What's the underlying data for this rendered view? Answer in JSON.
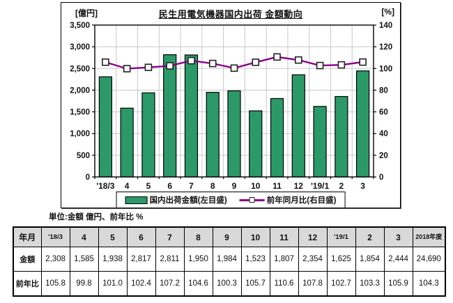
{
  "chart": {
    "title": "民生用電気機器国内出荷 金額動向",
    "left_axis_unit": "[億円]",
    "right_axis_unit": "[%]",
    "legend": {
      "bar_label": "国内出荷金額(左目盛)",
      "line_label": "前年同月比(右目盛)"
    },
    "colors": {
      "bar_fill": "#2B9A68",
      "bar_border": "#000000",
      "line": "#8B008B",
      "marker_fill": "#ffffff",
      "marker_border": "#222222",
      "grid": "#c8c8c8",
      "axis": "#000000"
    }
  },
  "chart_data": {
    "type": "bar",
    "categories": [
      "'18/3",
      "4",
      "5",
      "6",
      "7",
      "8",
      "9",
      "10",
      "11",
      "12",
      "'19/1",
      "2",
      "3"
    ],
    "series": [
      {
        "name": "国内出荷金額(左目盛)",
        "type": "bar",
        "axis": "left",
        "values": [
          2308,
          1585,
          1938,
          2817,
          2811,
          1950,
          1984,
          1523,
          1807,
          2354,
          1625,
          1854,
          2444
        ]
      },
      {
        "name": "前年同月比(右目盛)",
        "type": "line",
        "axis": "right",
        "values": [
          105.8,
          99.8,
          101.0,
          102.4,
          107.2,
          104.6,
          100.3,
          105.7,
          110.6,
          107.8,
          102.7,
          103.3,
          105.9
        ]
      }
    ],
    "title": "民生用電気機器国内出荷 金額動向",
    "left_axis": {
      "label": "[億円]",
      "min": 0,
      "max": 3500,
      "step": 500,
      "ticks": [
        "0",
        "500",
        "1,000",
        "1,500",
        "2,000",
        "2,500",
        "3,000",
        "3,500"
      ]
    },
    "right_axis": {
      "label": "[%]",
      "min": 0,
      "max": 140,
      "step": 20,
      "ticks": [
        "0",
        "20",
        "40",
        "60",
        "80",
        "100",
        "120",
        "140"
      ]
    },
    "grid": true,
    "legend_position": "bottom"
  },
  "table": {
    "unit_note": "単位:金額 億円、前年比 %",
    "header": [
      "年月",
      "'18/3",
      "4",
      "5",
      "6",
      "7",
      "8",
      "9",
      "10",
      "11",
      "12",
      "'19/1",
      "2",
      "3",
      "2018年度"
    ],
    "rows": [
      {
        "label": "金額",
        "values": [
          "2,308",
          "1,585",
          "1,938",
          "2,817",
          "2,811",
          "1,950",
          "1,984",
          "1,523",
          "1,807",
          "2,354",
          "1,625",
          "1,854",
          "2,444",
          "24,690"
        ]
      },
      {
        "label": "前年比",
        "values": [
          "105.8",
          "99.8",
          "101.0",
          "102.4",
          "107.2",
          "104.6",
          "100.3",
          "105.7",
          "110.6",
          "107.8",
          "102.7",
          "103.3",
          "105.9",
          "104.3"
        ]
      }
    ]
  }
}
